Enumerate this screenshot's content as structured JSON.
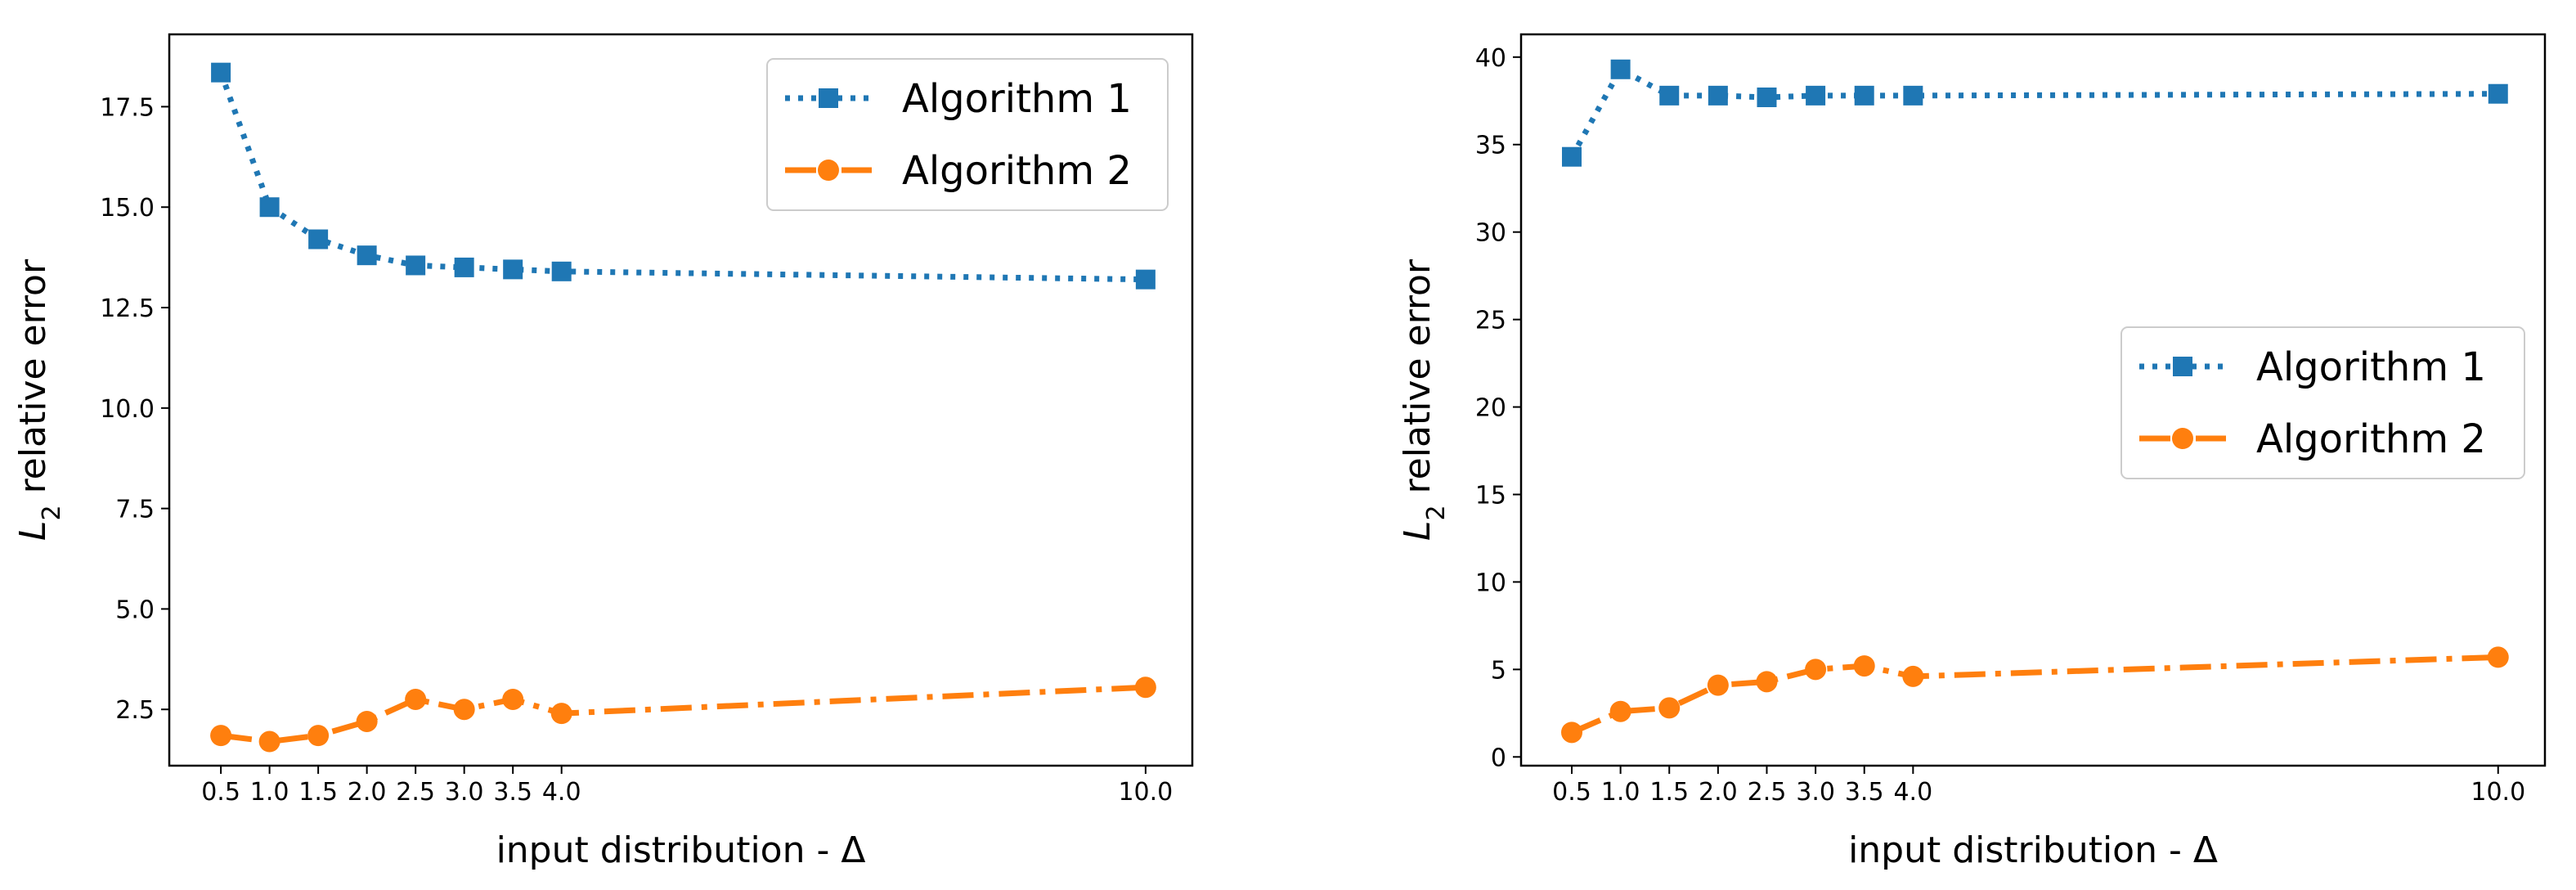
{
  "chart_data": [
    {
      "type": "line",
      "xlabel": "input distribution - Δ",
      "ylabel_main": "L",
      "ylabel_sub": "2",
      "ylabel_rest": " relative error",
      "x_tick_values": [
        0.5,
        1.0,
        1.5,
        2.0,
        2.5,
        3.0,
        3.5,
        4.0,
        10.0
      ],
      "x_tick_labels": [
        "0.5",
        "1.0",
        "1.5",
        "2.0",
        "2.5",
        "3.0",
        "3.5",
        "4.0",
        "10.0"
      ],
      "xlim": [
        -0.03,
        10.48
      ],
      "y_tick_values": [
        2.5,
        5.0,
        7.5,
        10.0,
        12.5,
        15.0,
        17.5
      ],
      "y_tick_labels": [
        "2.5",
        "5.0",
        "7.5",
        "10.0",
        "12.5",
        "15.0",
        "17.5"
      ],
      "ylim": [
        1.1,
        19.3
      ],
      "legend": {
        "position": "top-right"
      },
      "series": [
        {
          "name": "Algorithm 1",
          "color": "#1f77b4",
          "marker": "square",
          "linestyle": "dotted",
          "x": [
            0.5,
            1.0,
            1.5,
            2.0,
            2.5,
            3.0,
            3.5,
            4.0,
            10.0
          ],
          "values": [
            18.35,
            15.0,
            14.2,
            13.8,
            13.55,
            13.5,
            13.45,
            13.4,
            13.2
          ]
        },
        {
          "name": "Algorithm 2",
          "color": "#ff7f0e",
          "marker": "circle",
          "linestyle": "dashdot",
          "x": [
            0.5,
            1.0,
            1.5,
            2.0,
            2.5,
            3.0,
            3.5,
            4.0,
            10.0
          ],
          "values": [
            1.85,
            1.7,
            1.85,
            2.2,
            2.75,
            2.5,
            2.75,
            2.4,
            3.05
          ]
        }
      ]
    },
    {
      "type": "line",
      "xlabel": "input distribution - Δ",
      "ylabel_main": "L",
      "ylabel_sub": "2",
      "ylabel_rest": " relative error",
      "x_tick_values": [
        0.5,
        1.0,
        1.5,
        2.0,
        2.5,
        3.0,
        3.5,
        4.0,
        10.0
      ],
      "x_tick_labels": [
        "0.5",
        "1.0",
        "1.5",
        "2.0",
        "2.5",
        "3.0",
        "3.5",
        "4.0",
        "10.0"
      ],
      "xlim": [
        -0.02,
        10.48
      ],
      "y_tick_values": [
        0,
        5,
        10,
        15,
        20,
        25,
        30,
        35,
        40
      ],
      "y_tick_labels": [
        "0",
        "5",
        "10",
        "15",
        "20",
        "25",
        "30",
        "35",
        "40"
      ],
      "ylim": [
        -0.5,
        41.3
      ],
      "legend": {
        "position": "center-right"
      },
      "series": [
        {
          "name": "Algorithm 1",
          "color": "#1f77b4",
          "marker": "square",
          "linestyle": "dotted",
          "x": [
            0.5,
            1.0,
            1.5,
            2.0,
            2.5,
            3.0,
            3.5,
            4.0,
            10.0
          ],
          "values": [
            34.3,
            39.3,
            37.8,
            37.8,
            37.7,
            37.8,
            37.8,
            37.8,
            37.9
          ]
        },
        {
          "name": "Algorithm 2",
          "color": "#ff7f0e",
          "marker": "circle",
          "linestyle": "dashdot",
          "x": [
            0.5,
            1.0,
            1.5,
            2.0,
            2.5,
            3.0,
            3.5,
            4.0,
            10.0
          ],
          "values": [
            1.4,
            2.6,
            2.8,
            4.1,
            4.3,
            5.0,
            5.2,
            4.6,
            5.7
          ]
        }
      ]
    }
  ]
}
